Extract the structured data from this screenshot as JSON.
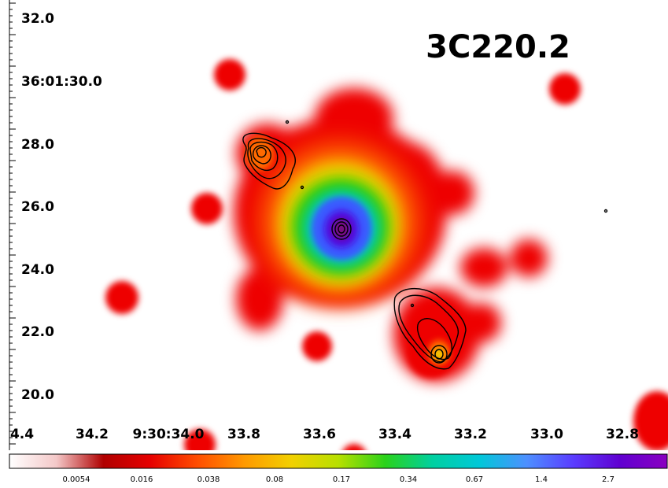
{
  "title": "3C220.2",
  "axes": {
    "y_tick_labels": [
      "32.0",
      "36:01:30.0",
      "28.0",
      "26.0",
      "24.0",
      "22.0",
      "20.0"
    ],
    "x_tick_labels": [
      "4.4",
      "34.2",
      "9:30:34.0",
      "33.8",
      "33.6",
      "33.4",
      "33.2",
      "33.0",
      "32.8"
    ]
  },
  "colorbar": {
    "tick_labels": [
      "0.0054",
      "0.016",
      "0.038",
      "0.08",
      "0.17",
      "0.34",
      "0.67",
      "1.4",
      "2.7"
    ],
    "stops": [
      "#ffffff",
      "#f4c8c8",
      "#b00000",
      "#e60000",
      "#ff4d00",
      "#ff9900",
      "#f2d000",
      "#b8e000",
      "#2ad21a",
      "#00d0a0",
      "#00c8d8",
      "#4d90ff",
      "#5a3cff",
      "#6000d0",
      "#8a00c0"
    ]
  },
  "image": {
    "colors": {
      "halo": "#cc0000",
      "red": "#ee0000",
      "orange": "#ff6a00",
      "yellow": "#f0d000",
      "green": "#22d000",
      "cyan": "#00c8d0",
      "blue": "#3a5aff",
      "indigo": "#5010e0",
      "core": "#7a1080",
      "contour": "#000000"
    }
  }
}
